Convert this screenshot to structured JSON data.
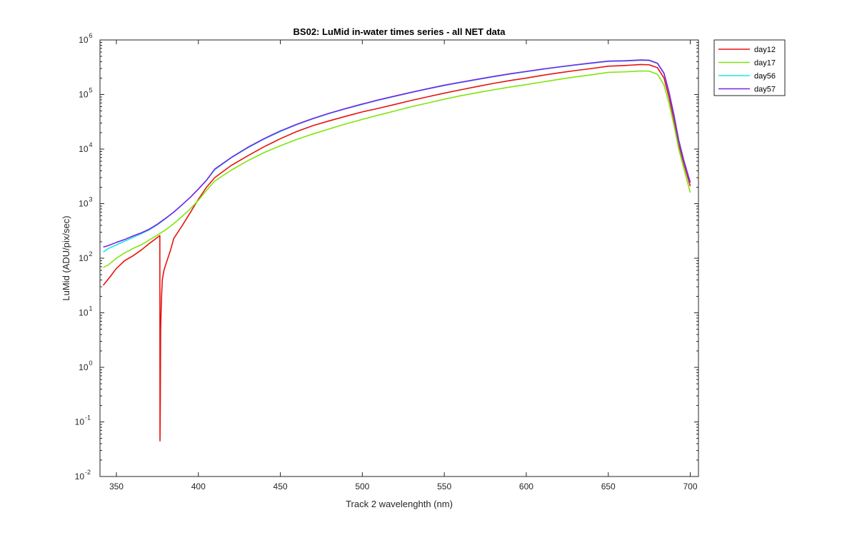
{
  "chart_data": {
    "type": "line",
    "title": "BS02: LuMid in-water times series - all NET data",
    "xlabel": "Track 2 wavelenghth (nm)",
    "ylabel": "LuMid (ADU/pix/sec)",
    "xlim": [
      340,
      705
    ],
    "ylim": [
      0.01,
      1000000
    ],
    "yscale": "log",
    "grid": false,
    "legend_position": "outside-top-right",
    "x_ticks": [
      350,
      400,
      450,
      500,
      550,
      600,
      650,
      700
    ],
    "x_tick_labels": [
      "350",
      "400",
      "450",
      "500",
      "550",
      "600",
      "650",
      "700"
    ],
    "y_ticks": [
      {
        "value": 0.01,
        "base": "10",
        "exp": "-2"
      },
      {
        "value": 0.1,
        "base": "10",
        "exp": "-1"
      },
      {
        "value": 1,
        "base": "10",
        "exp": "0"
      },
      {
        "value": 10,
        "base": "10",
        "exp": "1"
      },
      {
        "value": 100,
        "base": "10",
        "exp": "2"
      },
      {
        "value": 1000,
        "base": "10",
        "exp": "3"
      },
      {
        "value": 10000,
        "base": "10",
        "exp": "4"
      },
      {
        "value": 100000,
        "base": "10",
        "exp": "5"
      },
      {
        "value": 1000000,
        "base": "10",
        "exp": "6"
      }
    ],
    "series": [
      {
        "name": "day12",
        "color": "#e8110e",
        "points": [
          [
            342,
            32
          ],
          [
            346,
            45
          ],
          [
            350,
            65
          ],
          [
            355,
            90
          ],
          [
            360,
            110
          ],
          [
            365,
            140
          ],
          [
            370,
            185
          ],
          [
            375,
            240
          ],
          [
            376.5,
            260
          ],
          [
            376.6,
            0.045
          ],
          [
            376.8,
            0.3
          ],
          [
            377,
            5
          ],
          [
            377.5,
            18
          ],
          [
            378,
            40
          ],
          [
            379,
            60
          ],
          [
            380,
            75
          ],
          [
            383,
            140
          ],
          [
            385,
            230
          ],
          [
            390,
            390
          ],
          [
            395,
            680
          ],
          [
            400,
            1200
          ],
          [
            405,
            2000
          ],
          [
            410,
            3000
          ],
          [
            420,
            5000
          ],
          [
            430,
            7500
          ],
          [
            440,
            11000
          ],
          [
            450,
            15500
          ],
          [
            460,
            21000
          ],
          [
            470,
            27000
          ],
          [
            480,
            33000
          ],
          [
            490,
            40000
          ],
          [
            500,
            48000
          ],
          [
            510,
            56000
          ],
          [
            520,
            66000
          ],
          [
            530,
            78000
          ],
          [
            540,
            91000
          ],
          [
            550,
            106000
          ],
          [
            560,
            122000
          ],
          [
            570,
            140000
          ],
          [
            580,
            160000
          ],
          [
            590,
            180000
          ],
          [
            600,
            200000
          ],
          [
            610,
            225000
          ],
          [
            620,
            250000
          ],
          [
            630,
            275000
          ],
          [
            640,
            300000
          ],
          [
            650,
            330000
          ],
          [
            660,
            340000
          ],
          [
            670,
            355000
          ],
          [
            675,
            350000
          ],
          [
            680,
            310000
          ],
          [
            684,
            200000
          ],
          [
            687,
            90000
          ],
          [
            690,
            35000
          ],
          [
            693,
            12000
          ],
          [
            696,
            5500
          ],
          [
            700,
            2100
          ]
        ]
      },
      {
        "name": "day17",
        "color": "#7fe50e",
        "points": [
          [
            342,
            68
          ],
          [
            345,
            75
          ],
          [
            350,
            100
          ],
          [
            355,
            125
          ],
          [
            360,
            150
          ],
          [
            365,
            175
          ],
          [
            370,
            215
          ],
          [
            375,
            265
          ],
          [
            380,
            330
          ],
          [
            385,
            430
          ],
          [
            390,
            580
          ],
          [
            395,
            800
          ],
          [
            400,
            1150
          ],
          [
            405,
            1750
          ],
          [
            410,
            2600
          ],
          [
            420,
            4100
          ],
          [
            430,
            6100
          ],
          [
            440,
            8600
          ],
          [
            450,
            11500
          ],
          [
            460,
            15000
          ],
          [
            470,
            19000
          ],
          [
            480,
            23500
          ],
          [
            490,
            29000
          ],
          [
            500,
            35000
          ],
          [
            510,
            42000
          ],
          [
            520,
            50000
          ],
          [
            530,
            60000
          ],
          [
            540,
            70000
          ],
          [
            550,
            82000
          ],
          [
            560,
            95000
          ],
          [
            570,
            108000
          ],
          [
            580,
            122000
          ],
          [
            590,
            137000
          ],
          [
            600,
            152000
          ],
          [
            610,
            170000
          ],
          [
            620,
            190000
          ],
          [
            630,
            210000
          ],
          [
            640,
            230000
          ],
          [
            650,
            255000
          ],
          [
            660,
            260000
          ],
          [
            670,
            270000
          ],
          [
            675,
            268000
          ],
          [
            680,
            235000
          ],
          [
            684,
            150000
          ],
          [
            687,
            70000
          ],
          [
            690,
            28000
          ],
          [
            693,
            10000
          ],
          [
            696,
            4500
          ],
          [
            700,
            1600
          ]
        ]
      },
      {
        "name": "day56",
        "color": "#16ebe5",
        "points": [
          [
            342,
            130
          ],
          [
            345,
            150
          ],
          [
            350,
            175
          ],
          [
            355,
            205
          ],
          [
            360,
            240
          ],
          [
            365,
            280
          ],
          [
            370,
            330
          ],
          [
            375,
            410
          ],
          [
            380,
            530
          ],
          [
            385,
            700
          ],
          [
            390,
            950
          ],
          [
            395,
            1300
          ],
          [
            400,
            1850
          ],
          [
            405,
            2700
          ],
          [
            410,
            4200
          ],
          [
            420,
            6900
          ],
          [
            430,
            10500
          ],
          [
            440,
            15200
          ],
          [
            450,
            21000
          ],
          [
            460,
            28000
          ],
          [
            470,
            36000
          ],
          [
            480,
            45000
          ],
          [
            490,
            55000
          ],
          [
            500,
            66000
          ],
          [
            510,
            79000
          ],
          [
            520,
            93000
          ],
          [
            530,
            109000
          ],
          [
            540,
            127000
          ],
          [
            550,
            146000
          ],
          [
            560,
            166000
          ],
          [
            570,
            188000
          ],
          [
            580,
            212000
          ],
          [
            590,
            237000
          ],
          [
            600,
            262000
          ],
          [
            610,
            290000
          ],
          [
            620,
            318000
          ],
          [
            630,
            346000
          ],
          [
            640,
            375000
          ],
          [
            650,
            405000
          ],
          [
            660,
            410000
          ],
          [
            670,
            425000
          ],
          [
            675,
            420000
          ],
          [
            680,
            370000
          ],
          [
            684,
            240000
          ],
          [
            687,
            110000
          ],
          [
            690,
            42000
          ],
          [
            693,
            14000
          ],
          [
            696,
            6200
          ],
          [
            700,
            2400
          ]
        ]
      },
      {
        "name": "day57",
        "color": "#7a22e8",
        "points": [
          [
            342,
            160
          ],
          [
            345,
            170
          ],
          [
            350,
            195
          ],
          [
            355,
            220
          ],
          [
            360,
            255
          ],
          [
            365,
            290
          ],
          [
            370,
            340
          ],
          [
            375,
            420
          ],
          [
            380,
            540
          ],
          [
            385,
            700
          ],
          [
            390,
            950
          ],
          [
            395,
            1300
          ],
          [
            400,
            1850
          ],
          [
            405,
            2700
          ],
          [
            410,
            4300
          ],
          [
            420,
            7000
          ],
          [
            430,
            10700
          ],
          [
            440,
            15500
          ],
          [
            450,
            21500
          ],
          [
            460,
            28500
          ],
          [
            470,
            36500
          ],
          [
            480,
            45500
          ],
          [
            490,
            55500
          ],
          [
            500,
            67000
          ],
          [
            510,
            80000
          ],
          [
            520,
            94000
          ],
          [
            530,
            110000
          ],
          [
            540,
            128000
          ],
          [
            550,
            148000
          ],
          [
            560,
            168000
          ],
          [
            570,
            190000
          ],
          [
            580,
            214000
          ],
          [
            590,
            240000
          ],
          [
            600,
            265000
          ],
          [
            610,
            293000
          ],
          [
            620,
            321000
          ],
          [
            630,
            350000
          ],
          [
            640,
            380000
          ],
          [
            650,
            410000
          ],
          [
            660,
            415000
          ],
          [
            670,
            430000
          ],
          [
            675,
            425000
          ],
          [
            680,
            375000
          ],
          [
            684,
            245000
          ],
          [
            687,
            112000
          ],
          [
            690,
            43000
          ],
          [
            693,
            14500
          ],
          [
            696,
            6300
          ],
          [
            700,
            2450
          ]
        ]
      }
    ]
  }
}
